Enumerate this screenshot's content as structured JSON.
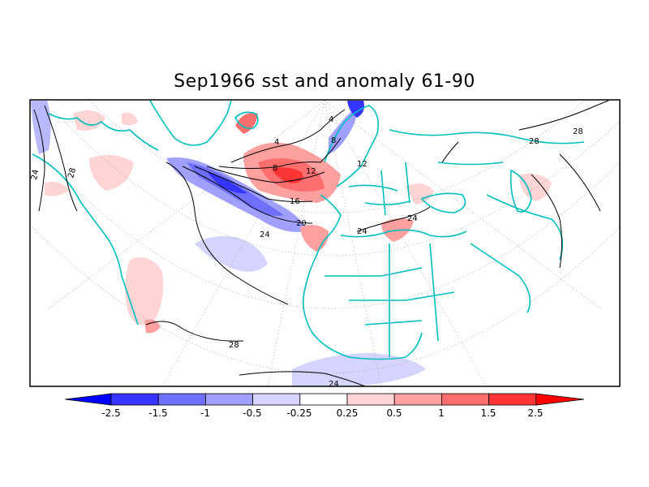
{
  "title": "Sep1966 sst and anomaly 61-90",
  "map": {
    "projection": "polar stereographic (North Atlantic / Europe)",
    "land_outline_color": "#00bfbf",
    "graticule": "dotted gray",
    "contour_labels": [
      "4",
      "4",
      "8",
      "8",
      "12",
      "12",
      "16",
      "20",
      "24",
      "24",
      "24",
      "24",
      "24",
      "28",
      "28",
      "28",
      "28"
    ]
  },
  "colorbar": {
    "tick_labels": [
      "-2.5",
      "-1.5",
      "-1",
      "-0.5",
      "-0.25",
      "0.25",
      "0.5",
      "1",
      "1.5",
      "2.5"
    ],
    "colors": [
      "#0000ff",
      "#3535ff",
      "#6e6eff",
      "#a0a0ff",
      "#d4d4ff",
      "#ffffff",
      "#ffd4d4",
      "#ffa0a0",
      "#ff6e6e",
      "#ff3535",
      "#ff0000"
    ]
  }
}
